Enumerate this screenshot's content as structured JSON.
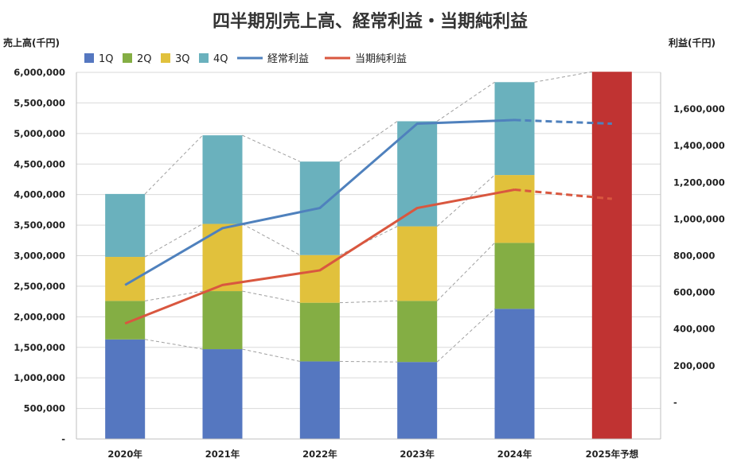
{
  "chart_data": {
    "type": "bar",
    "title": "四半期別売上高、経常利益・当期純利益",
    "ylabel_left": "売上高(千円)",
    "ylabel_right": "利益(千円)",
    "ylim_left": [
      0,
      6000000
    ],
    "ylim_right": [
      -200000,
      1800000
    ],
    "yticks_left": [
      "-",
      "500,000",
      "1,000,000",
      "1,500,000",
      "2,000,000",
      "2,500,000",
      "3,000,000",
      "3,500,000",
      "4,000,000",
      "4,500,000",
      "5,000,000",
      "5,500,000",
      "6,000,000"
    ],
    "yticks_right": [
      "-",
      "200,000",
      "400,000",
      "600,000",
      "800,000",
      "1,000,000",
      "1,200,000",
      "1,400,000",
      "1,600,000"
    ],
    "categories": [
      "2020年",
      "2021年",
      "2022年",
      "2023年",
      "2024年",
      "2025年予想"
    ],
    "forecast_category": "2025年予想",
    "forecast_color": "#c03332",
    "forecast_total": 6010000,
    "colors": {
      "1Q": "#5577c0",
      "2Q": "#84ae44",
      "3Q": "#e1c13c",
      "4Q": "#6ab1bd",
      "経常利益": "#4f81bd",
      "当期純利益": "#d9573f",
      "connector": "#a0a0a0"
    },
    "grid": true,
    "legend": "top-left",
    "bar_series": [
      {
        "name": "1Q",
        "values": [
          1630000,
          1470000,
          1270000,
          1260000,
          2130000
        ]
      },
      {
        "name": "2Q",
        "values": [
          630000,
          950000,
          960000,
          1000000,
          1080000
        ]
      },
      {
        "name": "3Q",
        "values": [
          720000,
          1100000,
          780000,
          1220000,
          1110000
        ]
      },
      {
        "name": "4Q",
        "values": [
          1030000,
          1450000,
          1530000,
          1720000,
          1520000
        ]
      }
    ],
    "line_series": [
      {
        "name": "経常利益",
        "values": [
          640000,
          950000,
          1060000,
          1520000,
          1540000,
          1520000
        ]
      },
      {
        "name": "当期純利益",
        "values": [
          430000,
          640000,
          720000,
          1060000,
          1160000,
          1110000
        ]
      }
    ]
  }
}
